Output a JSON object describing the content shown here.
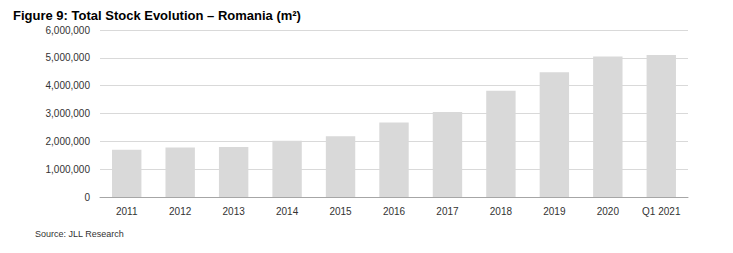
{
  "chart_data": {
    "type": "bar",
    "title": "Figure 9: Total Stock Evolution – Romania (m²)",
    "source": "Source: JLL Research",
    "categories": [
      "2011",
      "2012",
      "2013",
      "2014",
      "2015",
      "2016",
      "2017",
      "2018",
      "2019",
      "2020",
      "Q1 2021"
    ],
    "values": [
      1700000,
      1780000,
      1800000,
      2020000,
      2180000,
      2680000,
      3050000,
      3820000,
      4480000,
      5050000,
      5100000
    ],
    "color": "#d9d9d9",
    "ylim": [
      0,
      6000000
    ],
    "yticks": [
      0,
      {
        "value": 1000000,
        "label": "1,000,000"
      },
      {
        "value": 2000000,
        "label": "2,000,000"
      },
      {
        "value": 3000000,
        "label": "3,000,000"
      },
      {
        "value": 4000000,
        "label": "4,000,000"
      },
      {
        "value": 5000000,
        "label": "5,000,000"
      },
      {
        "value": 6000000,
        "label": "6,000,000"
      }
    ],
    "grid": true
  }
}
